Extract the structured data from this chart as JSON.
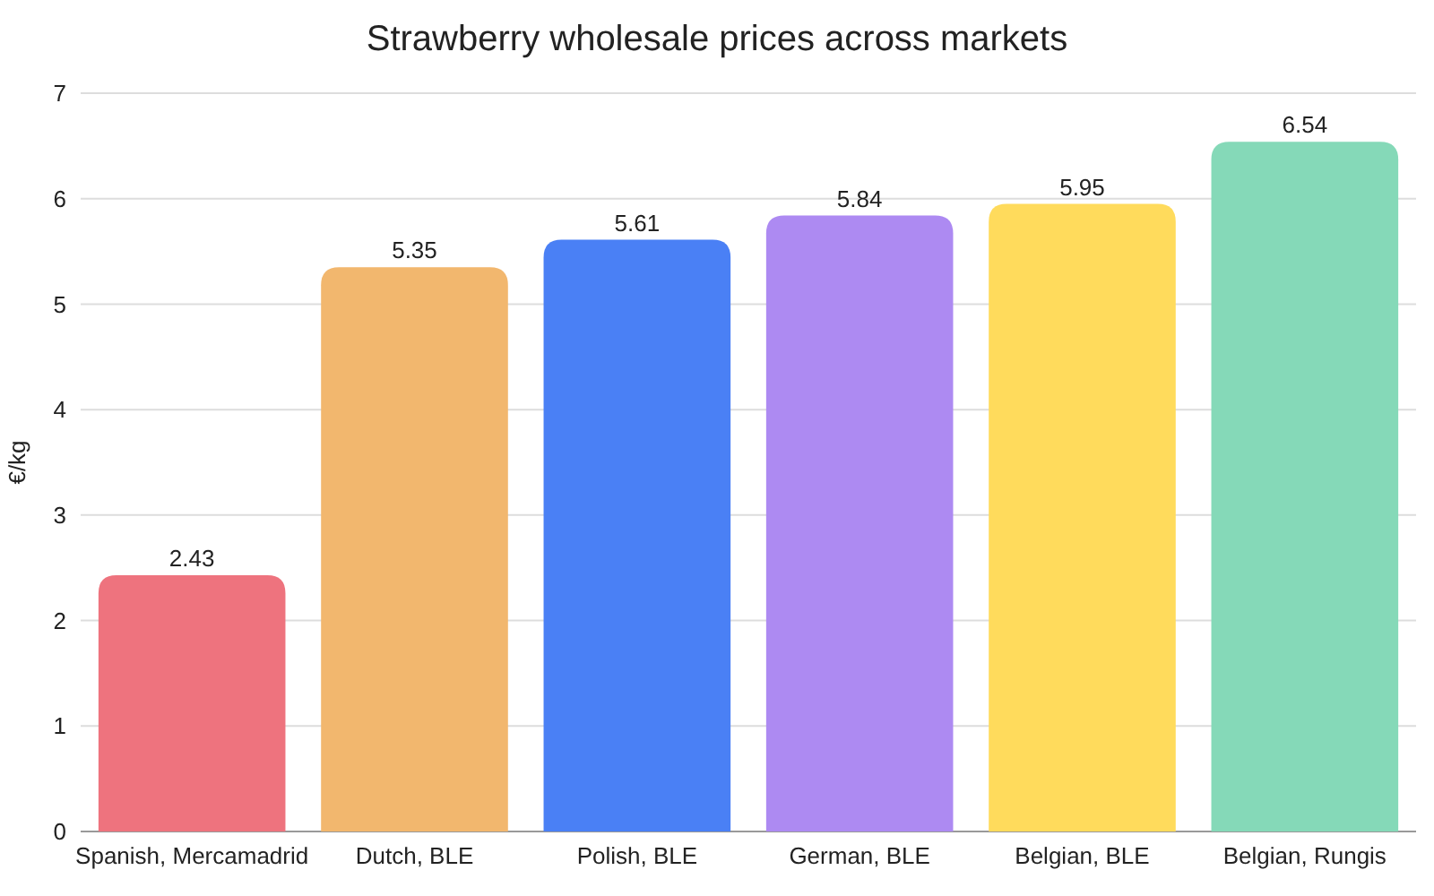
{
  "chart_data": {
    "type": "bar",
    "title": "Strawberry wholesale prices across markets",
    "ylabel": "€/kg",
    "categories": [
      "Spanish, Mercamadrid",
      "Dutch, BLE",
      "Polish, BLE",
      "German, BLE",
      "Belgian, BLE",
      "Belgian, Rungis"
    ],
    "values": [
      2.43,
      5.35,
      5.61,
      5.84,
      5.95,
      6.54
    ],
    "colors": [
      "#ee737e",
      "#f2b76e",
      "#4a80f5",
      "#ad8af2",
      "#ffdb5c",
      "#85d9b8"
    ],
    "ylim": [
      0,
      7
    ],
    "yticks": [
      0,
      1,
      2,
      3,
      4,
      5,
      6,
      7
    ],
    "grid": "y",
    "data_labels": true
  }
}
